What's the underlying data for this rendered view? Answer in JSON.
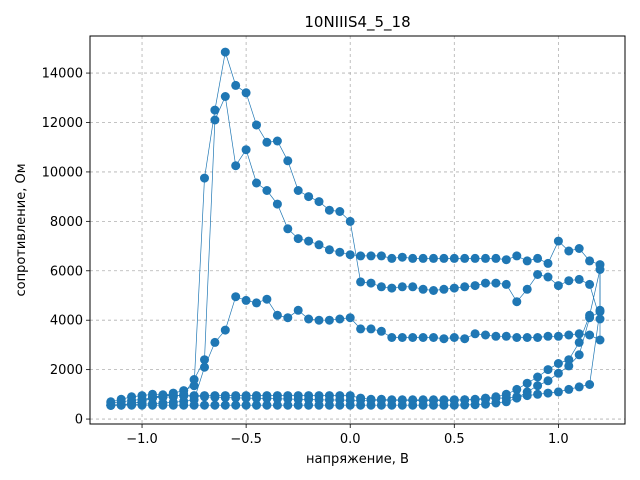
{
  "chart_data": {
    "type": "line",
    "title": "10NIIIS4_5_18",
    "xlabel": "напряжение, В",
    "ylabel": "сопротивление, Ом",
    "xlim": [
      -1.25,
      1.32
    ],
    "ylim": [
      -200,
      15500
    ],
    "xticks": [
      -1.0,
      -0.5,
      0.0,
      0.5,
      1.0
    ],
    "xtick_labels": [
      "−1.0",
      "−0.5",
      "0.0",
      "0.5",
      "1.0"
    ],
    "yticks": [
      0,
      2000,
      4000,
      6000,
      8000,
      10000,
      12000,
      14000
    ],
    "ytick_labels": [
      "0",
      "2000",
      "4000",
      "6000",
      "8000",
      "10000",
      "12000",
      "14000"
    ],
    "grid": true,
    "color": "#1f77b4",
    "series": [
      {
        "x": [
          -1.15,
          -1.1,
          -1.05,
          -1.0,
          -0.95,
          -0.9,
          -0.85,
          -0.8,
          -0.75,
          -0.7,
          -0.65,
          -0.6,
          -0.55,
          -0.5,
          -0.45,
          -0.4,
          -0.35,
          -0.3,
          -0.25,
          -0.2,
          -0.15,
          -0.1,
          -0.05,
          0.0,
          0.05,
          0.1,
          0.15,
          0.2,
          0.25,
          0.3,
          0.35,
          0.4,
          0.45,
          0.5,
          0.55,
          0.6,
          0.65,
          0.7,
          0.75,
          0.8,
          0.85,
          0.9,
          0.95,
          1.0,
          1.05,
          1.1,
          1.15,
          1.2,
          1.2,
          1.15,
          1.1,
          1.05,
          1.0,
          0.95,
          0.9,
          0.85,
          0.8,
          0.75,
          0.7,
          0.65,
          0.6,
          0.55,
          0.5,
          0.45,
          0.4,
          0.35,
          0.3,
          0.25,
          0.2,
          0.15,
          0.1,
          0.05,
          0.0,
          -0.05,
          -0.1,
          -0.15,
          -0.2,
          -0.25,
          -0.3,
          -0.35,
          -0.4,
          -0.45,
          -0.5,
          -0.55,
          -0.6,
          -0.65,
          -0.7,
          -0.75,
          -0.8,
          -0.85,
          -0.9,
          -0.95,
          -1.0,
          -1.05,
          -1.1,
          -1.15
        ],
        "y": [
          550,
          560,
          580,
          600,
          620,
          650,
          680,
          720,
          780,
          2100,
          3100,
          3600,
          4950,
          4800,
          4700,
          4850,
          4200,
          4100,
          4400,
          4050,
          4000,
          4000,
          4050,
          4100,
          3650,
          3650,
          3550,
          3300,
          3300,
          3300,
          3300,
          3300,
          3250,
          3300,
          3250,
          3450,
          3400,
          3350,
          3350,
          3300,
          3300,
          3300,
          3350,
          3350,
          3400,
          3450,
          3400,
          3200,
          4350,
          4100,
          2600,
          2150,
          1850,
          1550,
          1350,
          1100,
          850,
          700,
          650,
          600,
          580,
          570,
          560,
          560,
          560,
          560,
          560,
          560,
          560,
          560,
          560,
          560,
          560,
          560,
          560,
          560,
          560,
          560,
          560,
          560,
          560,
          560,
          560,
          560,
          560,
          560,
          560,
          560,
          560,
          560,
          560,
          560,
          560,
          560,
          560,
          560
        ]
      },
      {
        "x": [
          -1.15,
          -1.1,
          -1.05,
          -1.0,
          -0.95,
          -0.9,
          -0.85,
          -0.8,
          -0.75,
          -0.7,
          -0.65,
          -0.6,
          -0.55,
          -0.5,
          -0.45,
          -0.4,
          -0.35,
          -0.3,
          -0.25,
          -0.2,
          -0.15,
          -0.1,
          -0.05,
          0.0,
          0.05,
          0.1,
          0.15,
          0.2,
          0.25,
          0.3,
          0.35,
          0.4,
          0.45,
          0.5,
          0.55,
          0.6,
          0.65,
          0.7,
          0.75,
          0.8,
          0.85,
          0.9,
          0.95,
          1.0,
          1.05,
          1.1,
          1.15,
          1.2,
          1.2,
          1.15,
          1.1,
          1.05,
          1.0,
          0.95,
          0.9,
          0.85,
          0.8,
          0.75,
          0.7,
          0.65,
          0.6,
          0.55,
          0.5,
          0.45,
          0.4,
          0.35,
          0.3,
          0.25,
          0.2,
          0.15,
          0.1,
          0.05,
          0.0,
          -0.05,
          -0.1,
          -0.15,
          -0.2,
          -0.25,
          -0.3,
          -0.35,
          -0.4,
          -0.45,
          -0.5,
          -0.55,
          -0.6,
          -0.65,
          -0.7,
          -0.75,
          -0.8,
          -0.85,
          -0.9,
          -0.95,
          -1.0,
          -1.05,
          -1.1,
          -1.15
        ],
        "y": [
          560,
          580,
          620,
          700,
          850,
          950,
          1050,
          1150,
          1350,
          9750,
          12500,
          14850,
          13500,
          13200,
          11900,
          11200,
          11250,
          10450,
          9250,
          9000,
          8800,
          8450,
          8400,
          8000,
          5550,
          5500,
          5350,
          5300,
          5350,
          5350,
          5250,
          5200,
          5250,
          5300,
          5350,
          5400,
          5500,
          5500,
          5450,
          4750,
          5250,
          5850,
          5750,
          5400,
          5600,
          5650,
          5450,
          4050,
          6250,
          6400,
          6900,
          6800,
          7200,
          6300,
          6500,
          6400,
          6600,
          6450,
          6500,
          6500,
          6500,
          6500,
          6500,
          6500,
          6500,
          6500,
          6500,
          6550,
          6500,
          6600,
          6600,
          6600,
          6650,
          6750,
          6850,
          7050,
          7200,
          7300,
          7700,
          8700,
          9250,
          9550,
          10900,
          10250,
          13050,
          12100,
          2400,
          1600,
          1000,
          900,
          880,
          860,
          800,
          750,
          700,
          650
        ]
      },
      {
        "x": [
          -1.15,
          -1.1,
          -1.05,
          -1.0,
          -0.95,
          -0.9,
          -0.85,
          -0.8,
          -0.75,
          -0.7,
          -0.65,
          -0.6,
          -0.55,
          -0.5,
          -0.45,
          -0.4,
          -0.35,
          -0.3,
          -0.25,
          -0.2,
          -0.15,
          -0.1,
          -0.05,
          0.0,
          0.05,
          0.1,
          0.15,
          0.2,
          0.25,
          0.3,
          0.35,
          0.4,
          0.45,
          0.5,
          0.55,
          0.6,
          0.65,
          0.7,
          0.75,
          0.8,
          0.85,
          0.9,
          0.95,
          1.0,
          1.05,
          1.1,
          1.15,
          1.2,
          1.2,
          1.15,
          1.1,
          1.05,
          1.0,
          0.95,
          0.9,
          0.85,
          0.8,
          0.75,
          0.7,
          0.65,
          0.6,
          0.55,
          0.5,
          0.45,
          0.4,
          0.35,
          0.3,
          0.25,
          0.2,
          0.15,
          0.1,
          0.05,
          0.0,
          -0.05,
          -0.1,
          -0.15,
          -0.2,
          -0.25,
          -0.3,
          -0.35,
          -0.4,
          -0.45,
          -0.5,
          -0.55,
          -0.6,
          -0.65,
          -0.7,
          -0.75,
          -0.8,
          -0.85,
          -0.9,
          -0.95,
          -1.0,
          -1.05,
          -1.1,
          -1.15
        ],
        "y": [
          560,
          580,
          620,
          720,
          900,
          950,
          950,
          950,
          950,
          950,
          950,
          950,
          950,
          950,
          950,
          950,
          950,
          950,
          950,
          950,
          950,
          950,
          950,
          950,
          850,
          800,
          800,
          780,
          780,
          780,
          780,
          780,
          780,
          780,
          780,
          780,
          800,
          850,
          850,
          900,
          950,
          1000,
          1050,
          1100,
          1200,
          1300,
          1400,
          4400,
          6050,
          4200,
          3100,
          2400,
          2250,
          2000,
          1700,
          1450,
          1200,
          1000,
          900,
          850,
          800,
          780,
          760,
          750,
          750,
          750,
          750,
          760,
          760,
          760,
          760,
          760,
          760,
          770,
          770,
          780,
          790,
          800,
          810,
          820,
          830,
          840,
          850,
          860,
          870,
          880,
          900,
          920,
          940,
          960,
          980,
          1000,
          950,
          900,
          800,
          700
        ]
      }
    ]
  }
}
